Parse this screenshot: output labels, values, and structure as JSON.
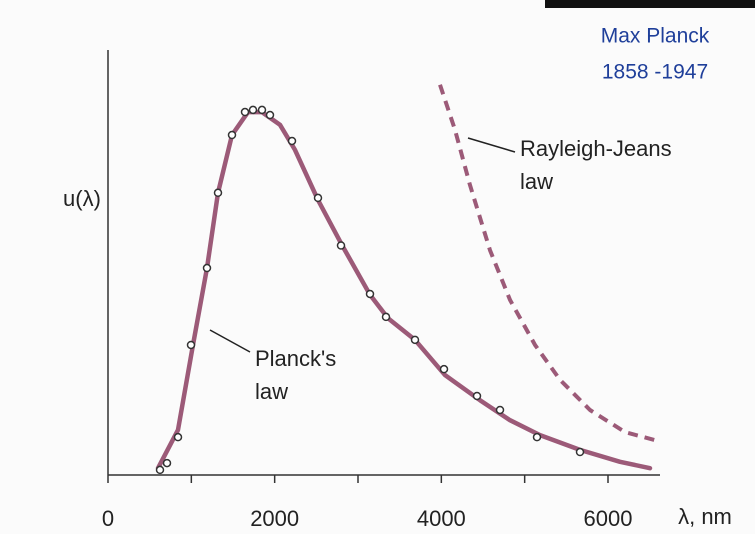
{
  "chart_data": {
    "type": "line",
    "ylabel": "u(λ)",
    "xlabel": "λ, nm",
    "xlim": [
      0,
      6600
    ],
    "ylim": [
      0,
      1
    ],
    "xticks": [
      0,
      2000,
      4000,
      6000
    ],
    "xminor_ticks": [
      1000,
      3000,
      5000
    ],
    "series": [
      {
        "style": "solid",
        "color": "#9c5a78",
        "x": [
          600,
          840,
          1020,
          1188,
          1320,
          1488,
          1680,
          1848,
          2064,
          2244,
          2520,
          2808,
          3144,
          3360,
          3684,
          4044,
          4464,
          4824,
          5184,
          5664,
          6144,
          6504
        ],
        "values": [
          0.016,
          0.106,
          0.306,
          0.487,
          0.664,
          0.8,
          0.854,
          0.854,
          0.824,
          0.765,
          0.647,
          0.541,
          0.424,
          0.369,
          0.318,
          0.235,
          0.176,
          0.129,
          0.094,
          0.059,
          0.031,
          0.016
        ]
      },
      {
        "style": "markers",
        "color": "#333333",
        "x": [
          624,
          708,
          840,
          996,
          1188,
          1320,
          1488,
          1644,
          1740,
          1848,
          1944,
          2208,
          2520,
          2796,
          3144,
          3336,
          3684,
          4032,
          4428,
          4704,
          5148,
          5664
        ],
        "values": [
          0.012,
          0.028,
          0.089,
          0.306,
          0.487,
          0.664,
          0.8,
          0.854,
          0.859,
          0.859,
          0.847,
          0.786,
          0.652,
          0.54,
          0.426,
          0.372,
          0.318,
          0.249,
          0.186,
          0.153,
          0.089,
          0.054
        ]
      },
      {
        "style": "dashed",
        "color": "#9c5a78",
        "x": [
          3984,
          4164,
          4344,
          4584,
          4824,
          5124,
          5424,
          5784,
          6204,
          6564
        ],
        "values": [
          0.918,
          0.812,
          0.682,
          0.529,
          0.412,
          0.306,
          0.224,
          0.153,
          0.101,
          0.082
        ]
      }
    ],
    "annotations": [
      {
        "lines": [
          "Planck's",
          "law"
        ]
      },
      {
        "lines": [
          "Rayleigh-Jeans",
          "law"
        ]
      }
    ],
    "caption": [
      "Max Planck",
      "1858 -1947"
    ]
  }
}
